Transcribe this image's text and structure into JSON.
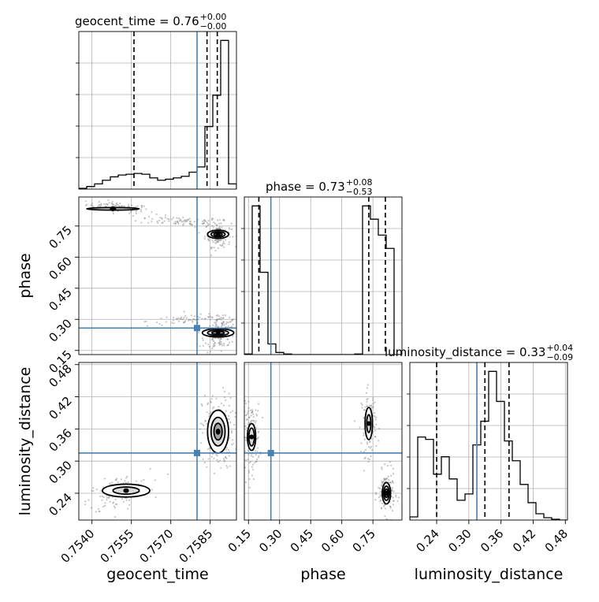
{
  "colors": {
    "truth": "#4682b4",
    "line": "#000000",
    "grid": "#b0b0b0",
    "points": "#7f7f7f"
  },
  "chart_data": {
    "type": "corner",
    "parameters": [
      "geocent_time",
      "phase",
      "luminosity_distance"
    ],
    "ranges": {
      "geocent_time": [
        0.7535,
        0.7595
      ],
      "phase": [
        0.13,
        0.89
      ],
      "luminosity_distance": [
        0.19,
        0.484
      ]
    },
    "truths": {
      "geocent_time": 0.758,
      "phase": 0.258,
      "luminosity_distance": 0.315
    },
    "titles": [
      {
        "param": "geocent_time",
        "text": "geocent_time = 0.76",
        "sup": "+0.00",
        "sub": "−0.00"
      },
      {
        "param": "phase",
        "text": "phase = 0.73",
        "sup": "+0.08",
        "sub": "−0.53"
      },
      {
        "param": "luminosity_distance",
        "text": "luminosity_distance = 0.33",
        "sup": "+0.04",
        "sub": "−0.09"
      }
    ],
    "quantile_lines": {
      "geocent_time": [
        0.7556,
        0.75838,
        0.75877
      ],
      "phase": [
        0.2,
        0.73,
        0.81
      ],
      "luminosity_distance": [
        0.24,
        0.33,
        0.375
      ]
    },
    "axis_labels": {
      "geocent_time": "geocent_time",
      "phase": "phase",
      "luminosity_distance": "luminosity_distance"
    },
    "ticks": {
      "geocent_time": {
        "values": [
          0.754,
          0.7555,
          0.757,
          0.7585
        ],
        "labels": [
          "0.7540",
          "0.7555",
          "0.7570",
          "0.7585"
        ]
      },
      "phase": {
        "values": [
          0.15,
          0.3,
          0.45,
          0.6,
          0.75
        ],
        "labels": [
          "0.15",
          "0.30",
          "0.45",
          "0.60",
          "0.75"
        ]
      },
      "luminosity_distance": {
        "values": [
          0.24,
          0.3,
          0.36,
          0.42,
          0.48
        ],
        "labels": [
          "0.24",
          "0.30",
          "0.36",
          "0.42",
          "0.48"
        ]
      }
    },
    "histograms": {
      "geocent_time": {
        "bin_edges": [
          0.7535,
          0.7538,
          0.7541,
          0.7544,
          0.7547,
          0.755,
          0.7553,
          0.7556,
          0.7559,
          0.7562,
          0.7565,
          0.7568,
          0.7571,
          0.7574,
          0.7577,
          0.758,
          0.7583,
          0.7586,
          0.7589,
          0.7592,
          0.7595
        ],
        "counts": [
          3,
          10,
          20,
          34,
          47,
          54,
          57,
          60,
          57,
          43,
          34,
          38,
          43,
          49,
          65,
          85,
          240,
          360,
          570,
          20
        ]
      },
      "phase": {
        "bin_edges": [
          0.13,
          0.168,
          0.206,
          0.244,
          0.282,
          0.32,
          0.358,
          0.396,
          0.434,
          0.472,
          0.51,
          0.548,
          0.586,
          0.624,
          0.662,
          0.7,
          0.738,
          0.776,
          0.814,
          0.852,
          0.89
        ],
        "counts": [
          2,
          560,
          310,
          40,
          8,
          2,
          0,
          0,
          0,
          0,
          0,
          0,
          0,
          0,
          2,
          560,
          510,
          450,
          400,
          0
        ]
      },
      "luminosity_distance": {
        "bin_edges": [
          0.19,
          0.2047,
          0.2194,
          0.2341,
          0.2488,
          0.2635,
          0.2782,
          0.2929,
          0.3076,
          0.3223,
          0.337,
          0.3517,
          0.3664,
          0.3811,
          0.3958,
          0.4105,
          0.4252,
          0.4399,
          0.4546,
          0.4693,
          0.484
        ],
        "counts": [
          4,
          105,
          102,
          58,
          80,
          52,
          25,
          33,
          95,
          125,
          188,
          150,
          100,
          75,
          45,
          22,
          8,
          3,
          1,
          0
        ]
      }
    },
    "scatter_clusters": [
      {
        "pair": [
          "geocent_time",
          "phase"
        ],
        "center": [
          0.755,
          0.84
        ],
        "spread": [
          0.0006,
          0.012
        ],
        "n": 90,
        "tilt": -0.6
      },
      {
        "pair": [
          "geocent_time",
          "phase"
        ],
        "center": [
          0.7574,
          0.775
        ],
        "spread": [
          0.0008,
          0.012
        ],
        "n": 80,
        "tilt": -0.4
      },
      {
        "pair": [
          "geocent_time",
          "phase"
        ],
        "center": [
          0.7588,
          0.71
        ],
        "spread": [
          0.00025,
          0.03
        ],
        "n": 140,
        "tilt": 0
      },
      {
        "pair": [
          "geocent_time",
          "phase"
        ],
        "center": [
          0.7579,
          0.3
        ],
        "spread": [
          0.0009,
          0.012
        ],
        "n": 70,
        "tilt": 0.4
      },
      {
        "pair": [
          "geocent_time",
          "phase"
        ],
        "center": [
          0.7589,
          0.23
        ],
        "spread": [
          0.0003,
          0.035
        ],
        "n": 150,
        "tilt": 0.3
      },
      {
        "pair": [
          "geocent_time",
          "luminosity_distance"
        ],
        "center": [
          0.755,
          0.24
        ],
        "spread": [
          0.0006,
          0.015
        ],
        "n": 160,
        "tilt": 0.5
      },
      {
        "pair": [
          "geocent_time",
          "luminosity_distance"
        ],
        "center": [
          0.7588,
          0.355
        ],
        "spread": [
          0.0003,
          0.035
        ],
        "n": 220,
        "tilt": 0
      },
      {
        "pair": [
          "phase",
          "luminosity_distance"
        ],
        "center": [
          0.165,
          0.345
        ],
        "spread": [
          0.02,
          0.03
        ],
        "n": 160,
        "tilt": 0
      },
      {
        "pair": [
          "phase",
          "luminosity_distance"
        ],
        "center": [
          0.73,
          0.37
        ],
        "spread": [
          0.018,
          0.03
        ],
        "n": 120,
        "tilt": 0
      },
      {
        "pair": [
          "phase",
          "luminosity_distance"
        ],
        "center": [
          0.815,
          0.24
        ],
        "spread": [
          0.02,
          0.02
        ],
        "n": 160,
        "tilt": 0
      }
    ],
    "density_blobs": [
      {
        "pair": [
          "geocent_time",
          "phase"
        ],
        "center": [
          0.7548,
          0.833
        ],
        "radii": [
          0.001,
          0.006
        ],
        "levels": [
          0.9
        ]
      },
      {
        "pair": [
          "geocent_time",
          "phase"
        ],
        "center": [
          0.7588,
          0.71
        ],
        "radii": [
          0.0004,
          0.02
        ],
        "levels": [
          0.35,
          0.6,
          0.9
        ]
      },
      {
        "pair": [
          "geocent_time",
          "phase"
        ],
        "center": [
          0.7588,
          0.235
        ],
        "radii": [
          0.0006,
          0.02
        ],
        "levels": [
          0.35,
          0.6,
          0.9
        ]
      },
      {
        "pair": [
          "geocent_time",
          "luminosity_distance"
        ],
        "center": [
          0.7553,
          0.245
        ],
        "radii": [
          0.0009,
          0.012
        ],
        "levels": [
          0.5,
          0.9
        ]
      },
      {
        "pair": [
          "geocent_time",
          "luminosity_distance"
        ],
        "center": [
          0.7588,
          0.355
        ],
        "radii": [
          0.0004,
          0.04
        ],
        "levels": [
          0.35,
          0.6,
          0.9
        ]
      },
      {
        "pair": [
          "phase",
          "luminosity_distance"
        ],
        "center": [
          0.165,
          0.345
        ],
        "radii": [
          0.02,
          0.025
        ],
        "levels": [
          0.6,
          0.9
        ]
      },
      {
        "pair": [
          "phase",
          "luminosity_distance"
        ],
        "center": [
          0.73,
          0.37
        ],
        "radii": [
          0.018,
          0.03
        ],
        "levels": [
          0.5,
          0.9
        ]
      },
      {
        "pair": [
          "phase",
          "luminosity_distance"
        ],
        "center": [
          0.815,
          0.24
        ],
        "radii": [
          0.02,
          0.02
        ],
        "levels": [
          0.35,
          0.6,
          0.9
        ]
      }
    ],
    "grid": true
  }
}
